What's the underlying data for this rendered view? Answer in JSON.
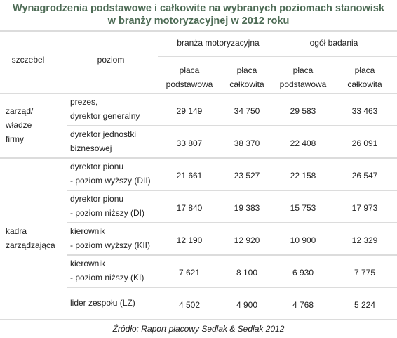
{
  "title": [
    "Wynagrodzenia podstawowe i całkowite na wybranych poziomach stanowisk",
    "w branży motoryzacyjnej w 2012 roku"
  ],
  "header": {
    "level": "szczebel",
    "position": "poziom",
    "groups": [
      "branża motoryzacyjna",
      "ogół badania"
    ],
    "columns": [
      [
        "płaca",
        "podstawowa"
      ],
      [
        "płaca",
        "całkowita"
      ],
      [
        "płaca",
        "podstawowa"
      ],
      [
        "płaca",
        "całkowita"
      ]
    ]
  },
  "table": [
    {
      "level": [
        "zarząd/",
        "władze",
        "firmy"
      ],
      "rows": [
        {
          "position": [
            "prezes,",
            "dyrektor generalny"
          ],
          "values": [
            "29 149",
            "34 750",
            "29 583",
            "33 463"
          ]
        },
        {
          "position": [
            "dyrektor jednostki",
            "biznesowej"
          ],
          "values": [
            "33 807",
            "38 370",
            "22 408",
            "26 091"
          ]
        }
      ]
    },
    {
      "level": [
        "kadra",
        "zarządzająca"
      ],
      "rows": [
        {
          "position": [
            "dyrektor pionu",
            "- poziom wyższy  (DII)"
          ],
          "values": [
            "21 661",
            "23 527",
            "22 158",
            "26 547"
          ]
        },
        {
          "position": [
            "dyrektor pionu",
            "- poziom niższy  (DI)"
          ],
          "values": [
            "17 840",
            "19 383",
            "15 753",
            "17 973"
          ]
        },
        {
          "position": [
            "kierownik",
            "- poziom wyższy  (KII)"
          ],
          "values": [
            "12 190",
            "12 920",
            "10 900",
            "12 329"
          ]
        },
        {
          "position": [
            "kierownik",
            "- poziom niższy (KI)"
          ],
          "values": [
            "7 621",
            "8 100",
            "6 930",
            "7 775"
          ]
        },
        {
          "position": [
            "lider zespołu (LZ)"
          ],
          "values": [
            "4 502",
            "4 900",
            "4 768",
            "5 224"
          ]
        }
      ]
    }
  ],
  "source": "Źródło: Raport płacowy Sedlak & Sedlak 2012"
}
